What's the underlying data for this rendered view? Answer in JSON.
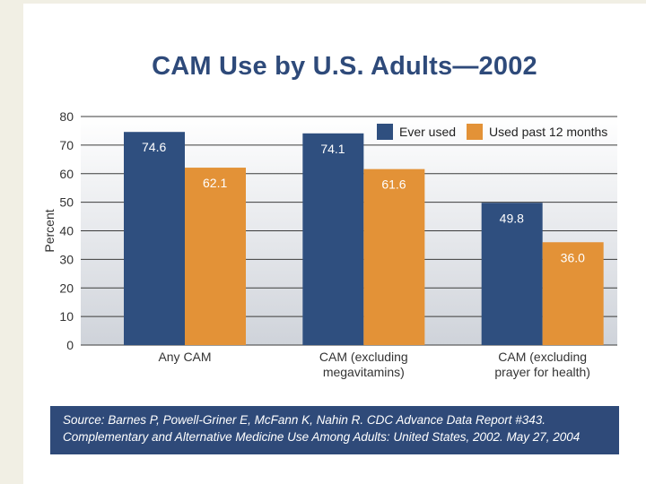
{
  "title": "CAM Use by U.S. Adults—2002",
  "source": {
    "line1": "Source: Barnes P, Powell-Griner E, McFann K, Nahin R. CDC Advance Data Report #343.",
    "line2": "Complementary and Alternative Medicine Use Among Adults: United States, 2002. May 27, 2004"
  },
  "chart_data": {
    "type": "bar",
    "title": "CAM Use by U.S. Adults—2002",
    "xlabel": "",
    "ylabel": "Percent",
    "ylim": [
      0,
      80
    ],
    "yticks": [
      0,
      10,
      20,
      30,
      40,
      50,
      60,
      70,
      80
    ],
    "grid": true,
    "legend_position": "top-right",
    "categories": [
      [
        "Any CAM"
      ],
      [
        "CAM (excluding",
        "megavitamins)"
      ],
      [
        "CAM (excluding",
        "prayer for health)"
      ]
    ],
    "series": [
      {
        "name": "Ever used",
        "color": "#2f4f7f",
        "values": [
          74.6,
          74.1,
          49.8
        ],
        "labels": [
          "74.6",
          "74.1",
          "49.8"
        ]
      },
      {
        "name": "Used past 12 months",
        "color": "#e39237",
        "values": [
          62.1,
          61.6,
          36.0
        ],
        "labels": [
          "62.1",
          "61.6",
          "36.0"
        ]
      }
    ]
  }
}
